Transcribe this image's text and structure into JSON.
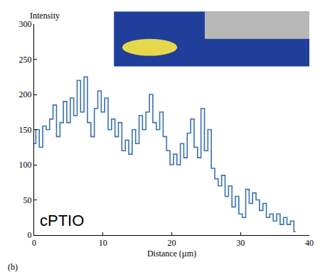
{
  "chart_data": {
    "type": "line",
    "y_label": "Intensity",
    "x_label": "Distance (µm)",
    "panel": "(b)",
    "annotation": "cPTIO",
    "x": [
      0,
      0.5,
      1,
      1.5,
      2,
      2.5,
      3,
      3.5,
      4,
      4.5,
      5,
      5.5,
      6,
      6.5,
      7,
      7.5,
      8,
      8.5,
      9,
      9.5,
      10,
      10.5,
      11,
      11.5,
      12,
      12.5,
      13,
      13.5,
      14,
      14.5,
      15,
      15.5,
      16,
      16.5,
      17,
      17.5,
      18,
      18.5,
      19,
      19.5,
      20,
      20.5,
      21,
      21.5,
      22,
      22.5,
      23,
      23.5,
      24,
      24.5,
      25,
      25.5,
      26,
      26.5,
      27,
      27.5,
      28,
      28.5,
      29,
      29.5,
      30,
      30.5,
      31,
      31.5,
      32,
      32.5,
      33,
      33.5,
      34,
      34.5,
      35,
      35.5,
      36,
      36.5,
      37,
      37.5,
      38
    ],
    "values": [
      130,
      150,
      125,
      155,
      150,
      165,
      185,
      140,
      160,
      190,
      160,
      195,
      170,
      220,
      175,
      225,
      160,
      140,
      180,
      205,
      175,
      195,
      150,
      165,
      140,
      160,
      120,
      135,
      115,
      150,
      130,
      170,
      150,
      175,
      200,
      160,
      150,
      175,
      140,
      120,
      100,
      115,
      100,
      130,
      110,
      145,
      165,
      125,
      110,
      180,
      120,
      150,
      95,
      80,
      70,
      85,
      55,
      70,
      40,
      55,
      30,
      25,
      65,
      45,
      60,
      50,
      35,
      45,
      25,
      30,
      20,
      30,
      15,
      25,
      15,
      20,
      5
    ],
    "color": "#3a70b0",
    "line_style": "steps",
    "xlim": [
      0,
      40
    ],
    "xticks": [
      0,
      10,
      20,
      30,
      40
    ],
    "ylim": [
      0,
      300
    ],
    "yticks": [
      0,
      50,
      100,
      150,
      200,
      250,
      300
    ],
    "grid": false
  }
}
